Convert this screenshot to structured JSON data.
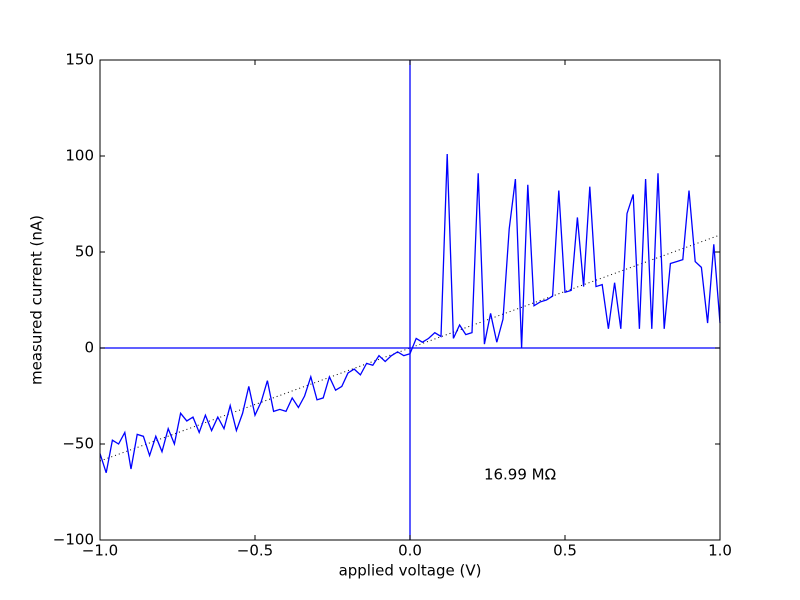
{
  "chart_data": {
    "type": "line",
    "xlabel": "applied voltage (V)",
    "ylabel": "measured current (nA)",
    "annotation": "16.99 MΩ",
    "x": [
      -1.0,
      -0.98,
      -0.96,
      -0.94,
      -0.92,
      -0.9,
      -0.88,
      -0.86,
      -0.84,
      -0.82,
      -0.8,
      -0.78,
      -0.76,
      -0.74,
      -0.72,
      -0.7,
      -0.68,
      -0.66,
      -0.64,
      -0.62,
      -0.6,
      -0.58,
      -0.56,
      -0.54,
      -0.52,
      -0.5,
      -0.48,
      -0.46,
      -0.44,
      -0.42,
      -0.4,
      -0.38,
      -0.36,
      -0.34,
      -0.32,
      -0.3,
      -0.28,
      -0.26,
      -0.24,
      -0.22,
      -0.2,
      -0.18,
      -0.16,
      -0.14,
      -0.12,
      -0.1,
      -0.08,
      -0.06,
      -0.04,
      -0.02,
      0.0,
      0.02,
      0.04,
      0.06,
      0.08,
      0.1,
      0.12,
      0.14,
      0.16,
      0.18,
      0.2,
      0.22,
      0.24,
      0.26,
      0.28,
      0.3,
      0.32,
      0.34,
      0.36,
      0.38,
      0.4,
      0.42,
      0.44,
      0.46,
      0.48,
      0.5,
      0.52,
      0.54,
      0.56,
      0.58,
      0.6,
      0.62,
      0.64,
      0.66,
      0.68,
      0.7,
      0.72,
      0.74,
      0.76,
      0.78,
      0.8,
      0.82,
      0.84,
      0.86,
      0.88,
      0.9,
      0.92,
      0.94,
      0.96,
      0.98,
      1.0
    ],
    "series": [
      {
        "color": "#0000ff",
        "values": [
          -55,
          -65,
          -48,
          -50,
          -44,
          -63,
          -45,
          -46,
          -56,
          -46,
          -54,
          -42,
          -50,
          -34,
          -38,
          -36,
          -44,
          -35,
          -43,
          -36,
          -42,
          -30,
          -43,
          -34,
          -20,
          -35,
          -28,
          -17,
          -33,
          -32,
          -33,
          -26,
          -31,
          -25,
          -15,
          -27,
          -26,
          -15,
          -22,
          -20,
          -13,
          -11,
          -14,
          -8,
          -9,
          -4,
          -7,
          -4,
          -2,
          -4,
          -3,
          5,
          3,
          5,
          8,
          6,
          101,
          5,
          12,
          7,
          8,
          91,
          2,
          18,
          3,
          15,
          62,
          88,
          0,
          85,
          22,
          24,
          25,
          27,
          82,
          29,
          30,
          68,
          32,
          84,
          32,
          33,
          10,
          34,
          10,
          70,
          80,
          10,
          88,
          10,
          91,
          10,
          44,
          45,
          46,
          82,
          45,
          42,
          13,
          54,
          13
        ]
      }
    ],
    "fit": {
      "x": [
        -1.0,
        1.0
      ],
      "values": [
        -58.86,
        58.86
      ],
      "color": "#000000"
    },
    "axvline": 0,
    "axhline": 0,
    "axline_color": "#0000ff",
    "xlim": [
      -1.0,
      1.0
    ],
    "ylim": [
      -100,
      150
    ],
    "xticks": [
      {
        "value": -1.0,
        "label": "−1.0"
      },
      {
        "value": -0.5,
        "label": "−0.5"
      },
      {
        "value": 0.0,
        "label": "0.0"
      },
      {
        "value": 0.5,
        "label": "0.5"
      },
      {
        "value": 1.0,
        "label": "1.0"
      }
    ],
    "yticks": [
      {
        "value": -100,
        "label": "−100"
      },
      {
        "value": -50,
        "label": "−50"
      },
      0,
      50,
      100,
      150
    ]
  }
}
